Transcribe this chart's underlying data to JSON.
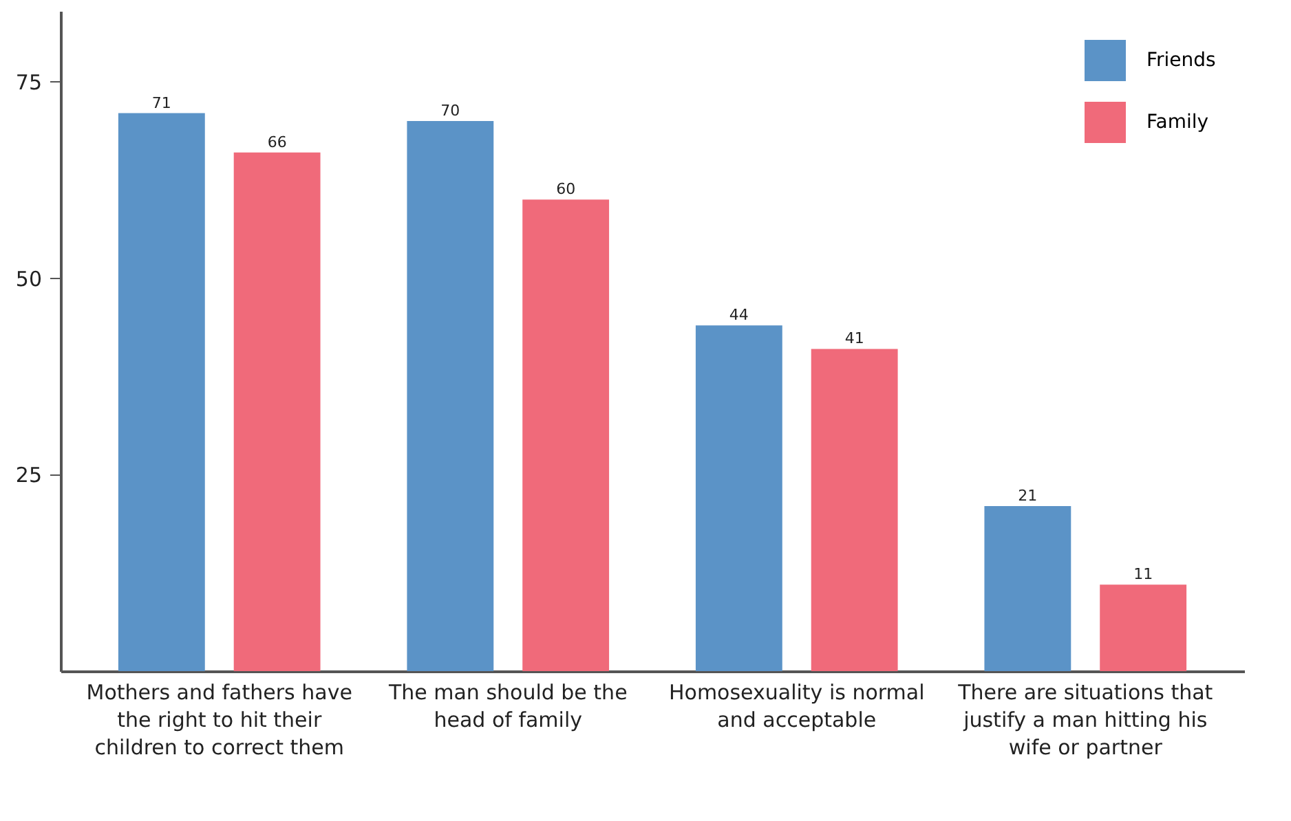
{
  "chart_data": {
    "type": "bar",
    "categories": [
      "Mothers and fathers have the right to hit their children to correct them",
      "The man should be the head of family",
      "Homosexuality is normal and acceptable",
      "There are situations that justify a man hitting his wife or partner"
    ],
    "series": [
      {
        "name": "Friends",
        "color": "#5b93c7",
        "values": [
          71,
          70,
          44,
          21
        ]
      },
      {
        "name": "Family",
        "color": "#f06a7a",
        "values": [
          66,
          60,
          41,
          11
        ]
      }
    ],
    "ylim": [
      0,
      84
    ],
    "yticks": [
      25,
      50,
      75
    ],
    "data_labels": true,
    "legend": "top right",
    "grid": false
  }
}
